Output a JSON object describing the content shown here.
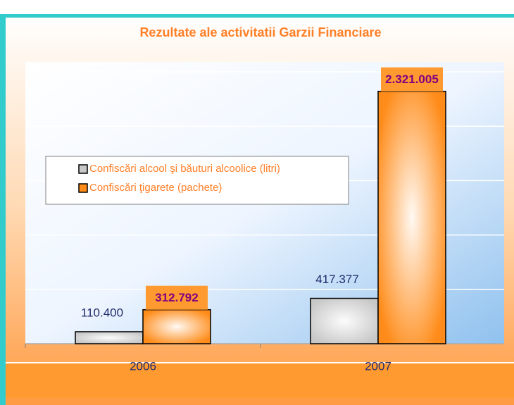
{
  "chart_data": {
    "type": "bar",
    "title": "Rezultate ale activitatii Garzii Financiare",
    "categories": [
      "2006",
      "2007"
    ],
    "series": [
      {
        "name": "Confiscări alcool şi băuturi alcoolice (litri)",
        "color": "#c8c8c8",
        "values": [
          110400,
          417377
        ],
        "value_labels": [
          "110.400",
          "417.377"
        ]
      },
      {
        "name": "Confiscări ţigarete (pachete)",
        "color": "#ff8c1a",
        "values": [
          312792,
          2321005
        ],
        "value_labels": [
          "312.792",
          "2.321.005"
        ]
      }
    ],
    "ylim": [
      0,
      2500000
    ],
    "yticks": [
      0,
      500000,
      1000000,
      1500000,
      2000000,
      2500000
    ],
    "grid": true
  }
}
